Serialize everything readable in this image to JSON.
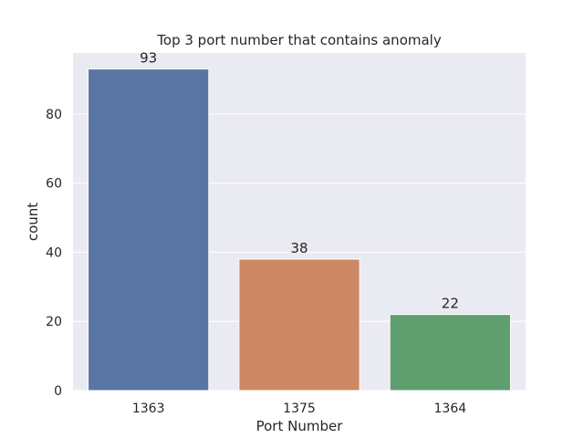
{
  "chart_data": {
    "type": "bar",
    "title": "Top 3 port number that contains anomaly",
    "xlabel": "Port Number",
    "ylabel": "count",
    "categories": [
      "1363",
      "1375",
      "1364"
    ],
    "values": [
      93,
      38,
      22
    ],
    "data_labels": [
      "93",
      "38",
      "22"
    ],
    "ylim": [
      0,
      97.65
    ],
    "yticks": [
      0,
      20,
      40,
      60,
      80
    ],
    "ytick_labels": [
      "0",
      "20",
      "40",
      "60",
      "80"
    ],
    "grid": true,
    "colors": [
      "#5975a4",
      "#cc8963",
      "#5f9e6e"
    ],
    "background_color": "#eaeaf2",
    "grid_color": "#ffffff"
  }
}
